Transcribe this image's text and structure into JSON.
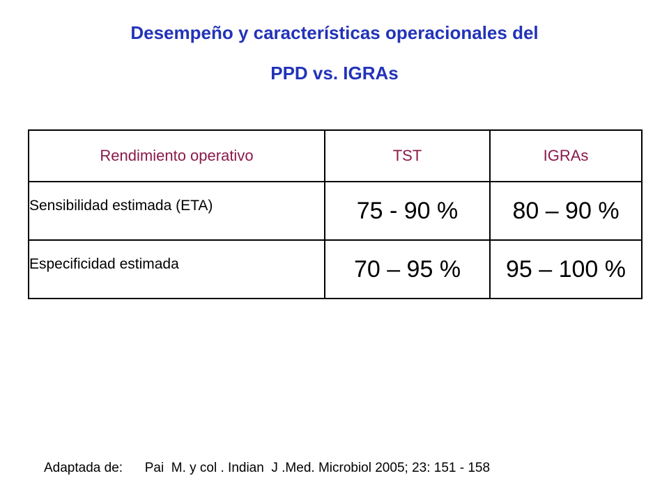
{
  "title": {
    "line1": "Desempeño y características operacionales del",
    "line2": "PPD vs. IGRAs"
  },
  "table": {
    "headers": [
      "Rendimiento operativo",
      "TST",
      "IGRAs"
    ],
    "rows": [
      {
        "label": "Sensibilidad estimada (ETA)",
        "tst": "75 - 90 %",
        "igras": "80 – 90 %"
      },
      {
        "label": "Especificidad estimada",
        "tst": "70 – 95 %",
        "igras": "95 – 100 %"
      }
    ]
  },
  "source": {
    "prefix": "Adaptada de:",
    "citation": "Pai  M. y col . Indian  J .Med. Microbiol 2005; 23: 151 - 158"
  },
  "colors": {
    "title": "#2233b8",
    "header_text": "#8a1a4a",
    "border": "#000000"
  }
}
